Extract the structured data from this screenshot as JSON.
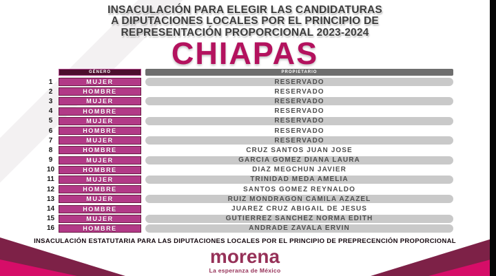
{
  "page": {
    "header_lines": [
      "INSACULACIÓN PARA ELEGIR LAS CANDIDATURAS",
      "A DIPUTACIONES LOCALES POR EL PRINCIPIO DE",
      "REPRESENTACIÓN PROPORCIONAL 2023-2024"
    ],
    "state_title": "CHIAPAS"
  },
  "table": {
    "headers": {
      "genero": "GÉNERO",
      "propietario": "PROPIETARIO"
    },
    "rows": [
      {
        "num": "1",
        "genero": "MUJER",
        "propietario": "RESERVADO",
        "banded": true
      },
      {
        "num": "2",
        "genero": "HOMBRE",
        "propietario": "RESERVADO",
        "banded": false
      },
      {
        "num": "3",
        "genero": "MUJER",
        "propietario": "RESERVADO",
        "banded": true
      },
      {
        "num": "4",
        "genero": "HOMBRE",
        "propietario": "RESERVADO",
        "banded": false
      },
      {
        "num": "5",
        "genero": "MUJER",
        "propietario": "RESERVADO",
        "banded": true
      },
      {
        "num": "6",
        "genero": "HOMBRE",
        "propietario": "RESERVADO",
        "banded": false
      },
      {
        "num": "7",
        "genero": "MUJER",
        "propietario": "RESERVADO",
        "banded": true
      },
      {
        "num": "8",
        "genero": "HOMBRE",
        "propietario": "CRUZ SANTOS JUAN JOSE",
        "banded": false
      },
      {
        "num": "9",
        "genero": "MUJER",
        "propietario": "GARCIA GOMEZ DIANA LAURA",
        "banded": true
      },
      {
        "num": "10",
        "genero": "HOMBRE",
        "propietario": "DIAZ MEGCHUN JAVIER",
        "banded": false
      },
      {
        "num": "11",
        "genero": "MUJER",
        "propietario": "TRINIDAD MEDA AMELIA",
        "banded": true
      },
      {
        "num": "12",
        "genero": "HOMBRE",
        "propietario": "SANTOS GOMEZ REYNALDO",
        "banded": false
      },
      {
        "num": "13",
        "genero": "MUJER",
        "propietario": "RUIZ MONDRAGON CAMILA AZAZEL",
        "banded": true
      },
      {
        "num": "14",
        "genero": "HOMBRE",
        "propietario": "JUAREZ CRUZ ABIGAIL DE JESUS",
        "banded": false
      },
      {
        "num": "15",
        "genero": "MUJER",
        "propietario": "GUTIERREZ SANCHEZ NORMA EDITH",
        "banded": true
      },
      {
        "num": "16",
        "genero": "HOMBRE",
        "propietario": "ANDRADE ZAVALA ERVIN",
        "banded": true
      }
    ]
  },
  "footer": {
    "note": "INSACULACIÓN ESTATUTARIA PARA LAS DIPUTACIONES LOCALES POR EL PRINCIPIO DE PREPRECENCIÓN PROPORCIONAL",
    "logo_wordmark": "morena",
    "logo_tagline": "La esperanza de México"
  },
  "colors": {
    "accent_magenta": "#b3125e",
    "gender_pill": "#b23a87",
    "genero_header_bg": "#4c0f2e",
    "propietario_header_bg": "#6e6e6e",
    "row_band": "#c9c9c9",
    "ribbon_dark": "#7d2147",
    "ribbon_pink": "#d60d68",
    "logo_maroon": "#963158"
  }
}
